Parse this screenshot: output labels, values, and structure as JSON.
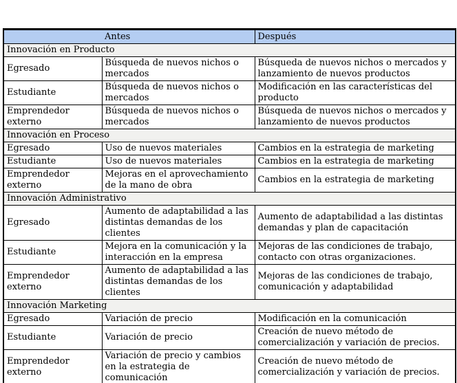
{
  "colors": {
    "header_bg": "#b4cdf2",
    "section_bg": "#f1f1ef",
    "border": "#000000",
    "page_bg": "#ffffff"
  },
  "table": {
    "header": {
      "corner": "",
      "antes": "Antes",
      "despues": "Después"
    },
    "sections": [
      {
        "title": "Innovación en Producto",
        "rows": [
          {
            "role": "Egresado",
            "antes": "Búsqueda de nuevos nichos o mercados",
            "despues": "Búsqueda de nuevos nichos o mercados y lanzamiento de nuevos productos"
          },
          {
            "role": "Estudiante",
            "antes": "Búsqueda de nuevos nichos o mercados",
            "despues": "Modificación en las características del producto"
          },
          {
            "role": "Emprendedor externo",
            "antes": "Búsqueda de nuevos nichos o mercados",
            "despues": "Búsqueda de nuevos nichos o mercados y lanzamiento de nuevos productos"
          }
        ]
      },
      {
        "title": "Innovación en Proceso",
        "rows": [
          {
            "role": "Egresado",
            "antes": "Uso de nuevos materiales",
            "despues": "Cambios en la estrategia de marketing"
          },
          {
            "role": "Estudiante",
            "antes": "Uso de nuevos materiales",
            "despues": "Cambios en la estrategia de marketing"
          },
          {
            "role": "Emprendedor externo",
            "antes": "Mejoras en el aprovechamiento de la mano de obra",
            "despues": "Cambios en la estrategia de marketing"
          }
        ]
      },
      {
        "title": "Innovación Administrativo",
        "rows": [
          {
            "role": "Egresado",
            "antes": "Aumento de adaptabilidad a las distintas demandas de los clientes",
            "despues": "Aumento de adaptabilidad a las distintas demandas y plan de capacitación"
          },
          {
            "role": "Estudiante",
            "antes": "Mejora en la comunicación y la interacción en la empresa",
            "despues": "Mejoras de las condiciones de trabajo, contacto con otras organizaciones."
          },
          {
            "role": "Emprendedor externo",
            "antes": "Aumento de adaptabilidad a las distintas demandas de los clientes",
            "despues": "Mejoras de las condiciones de trabajo, comunicación y adaptabilidad"
          }
        ]
      },
      {
        "title": "Innovación Marketing",
        "rows": [
          {
            "role": "Egresado",
            "antes": "Variación de precio",
            "despues": "Modificación en la comunicación"
          },
          {
            "role": "Estudiante",
            "antes": "Variación de precio",
            "despues": "Creación de nuevo método de comercialización y variación de precios."
          },
          {
            "role": "Emprendedor externo",
            "antes": "Variación de precio y cambios en la estrategia de comunicación",
            "despues": "Creación de nuevo método de comercialización y variación de precios."
          }
        ]
      }
    ]
  }
}
